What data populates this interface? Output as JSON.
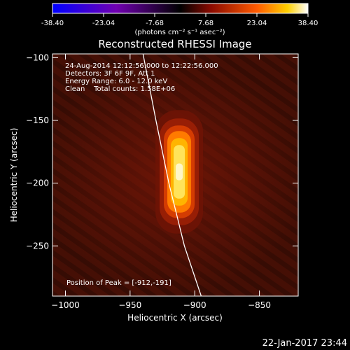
{
  "chart_data": {
    "type": "heatmap",
    "title": "Reconstructed RHESSI Image",
    "xlabel": "Heliocentric X (arcsec)",
    "ylabel": "Heliocentric Y (arcsec)",
    "xlim": [
      -1010,
      -820
    ],
    "ylim": [
      -290,
      -97
    ],
    "xticks": [
      -1000,
      -950,
      -900,
      -850
    ],
    "yticks": [
      -100,
      -150,
      -200,
      -250
    ],
    "colorbar": {
      "unit_label": "(photons cm⁻² s⁻¹ asec⁻²)",
      "range": [
        -38.4,
        38.4
      ],
      "ticks": [
        "-38.40",
        "-23.04",
        "-7.68",
        "7.68",
        "23.04",
        "38.40"
      ]
    },
    "annotations": [
      "24-Aug-2014 12:12:56.000 to 12:22:56.000",
      "Detectors: 3F 6F 9F, Att 1",
      "Energy Range: 6.0 - 12.0 keV",
      "Clean    Total counts: 1.58E+06"
    ],
    "peak_label": "Position of Peak = [-912,-191]",
    "peak": {
      "x": -912,
      "y": -191
    },
    "peak_value": 38.4,
    "source_extent_y": [
      -225,
      -160
    ],
    "limb_curve": [
      [
        -940,
        -97
      ],
      [
        -930,
        -150
      ],
      [
        -920,
        -200
      ],
      [
        -908,
        -250
      ],
      [
        -895,
        -290
      ]
    ],
    "footer": "22-Jan-2017 23:44",
    "grid": false
  }
}
